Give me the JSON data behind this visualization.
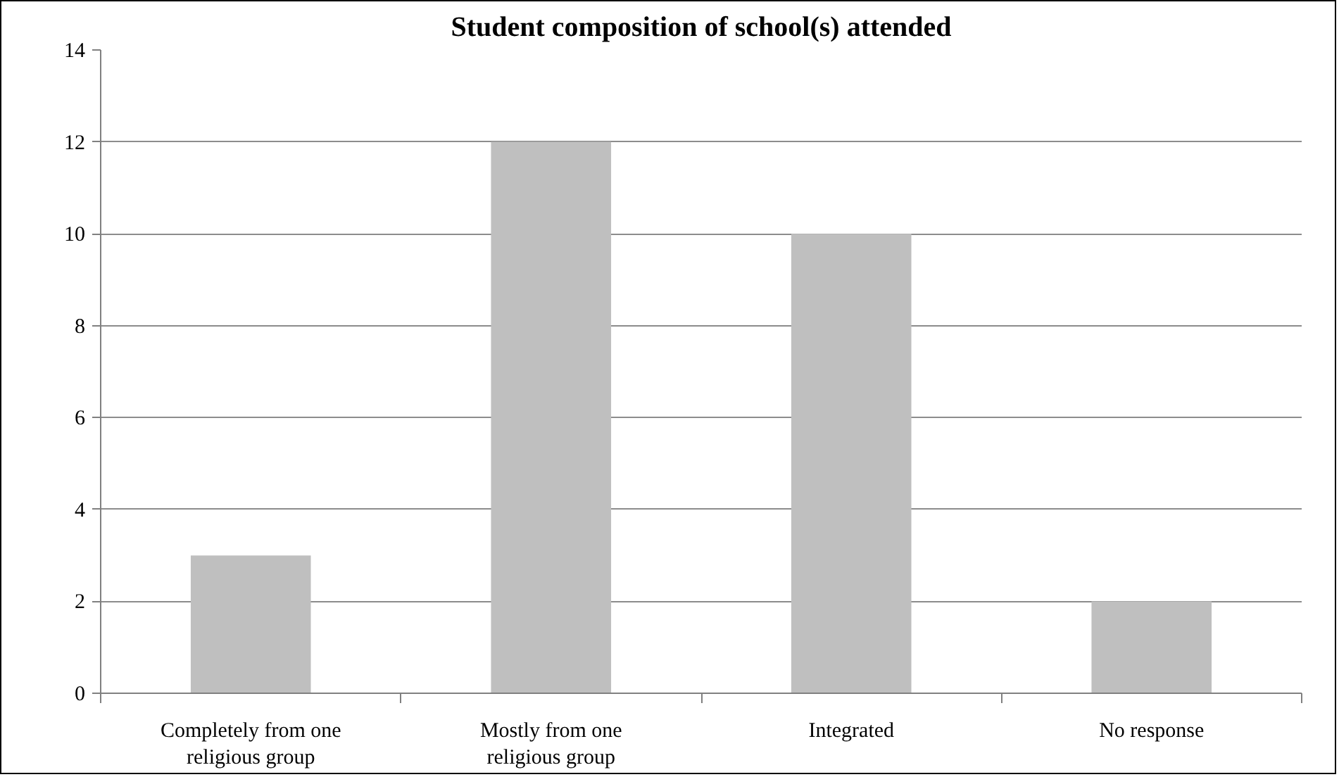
{
  "chart_data": {
    "type": "bar",
    "title": "Student composition of school(s) attended",
    "categories": [
      "Completely from one religious group",
      "Mostly from one religious group",
      "Integrated",
      "No response"
    ],
    "values": [
      3,
      12,
      10,
      2
    ],
    "color": "#bfbfbf",
    "ylim": [
      0,
      14
    ],
    "yticks": [
      0,
      2,
      4,
      6,
      8,
      10,
      12,
      14
    ],
    "grid": "y"
  }
}
